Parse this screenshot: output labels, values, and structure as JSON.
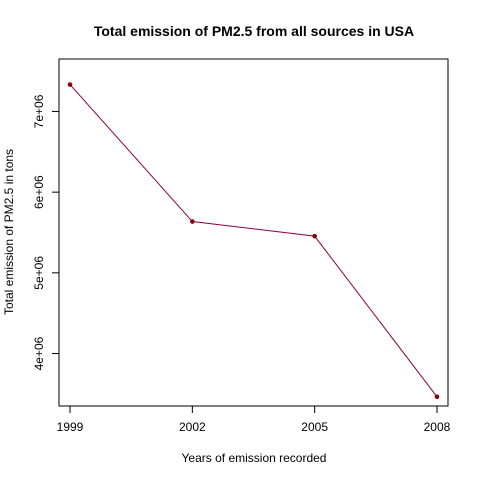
{
  "chart_data": {
    "type": "line",
    "title": "Total emission of PM2.5 from all sources in USA",
    "xlabel": "Years  of emission recorded",
    "ylabel": "Total emission of PM2.5 in tons",
    "x": [
      1999,
      2002,
      2005,
      2008
    ],
    "xticks": [
      "1999",
      "2002",
      "2005",
      "2008"
    ],
    "yticks": [
      4000000,
      5000000,
      6000000,
      7000000
    ],
    "ytick_labels": [
      "4e+06",
      "5e+06",
      "6e+06",
      "7e+06"
    ],
    "xlim": [
      1998.73,
      2008.27
    ],
    "ylim": [
      3350000,
      7650000
    ],
    "series": [
      {
        "values": [
          7332967,
          5635780,
          5454703,
          3464206
        ],
        "line_color": "#8B0045",
        "marker_color": "#8B0000"
      }
    ],
    "grid": false,
    "legend": "none"
  }
}
